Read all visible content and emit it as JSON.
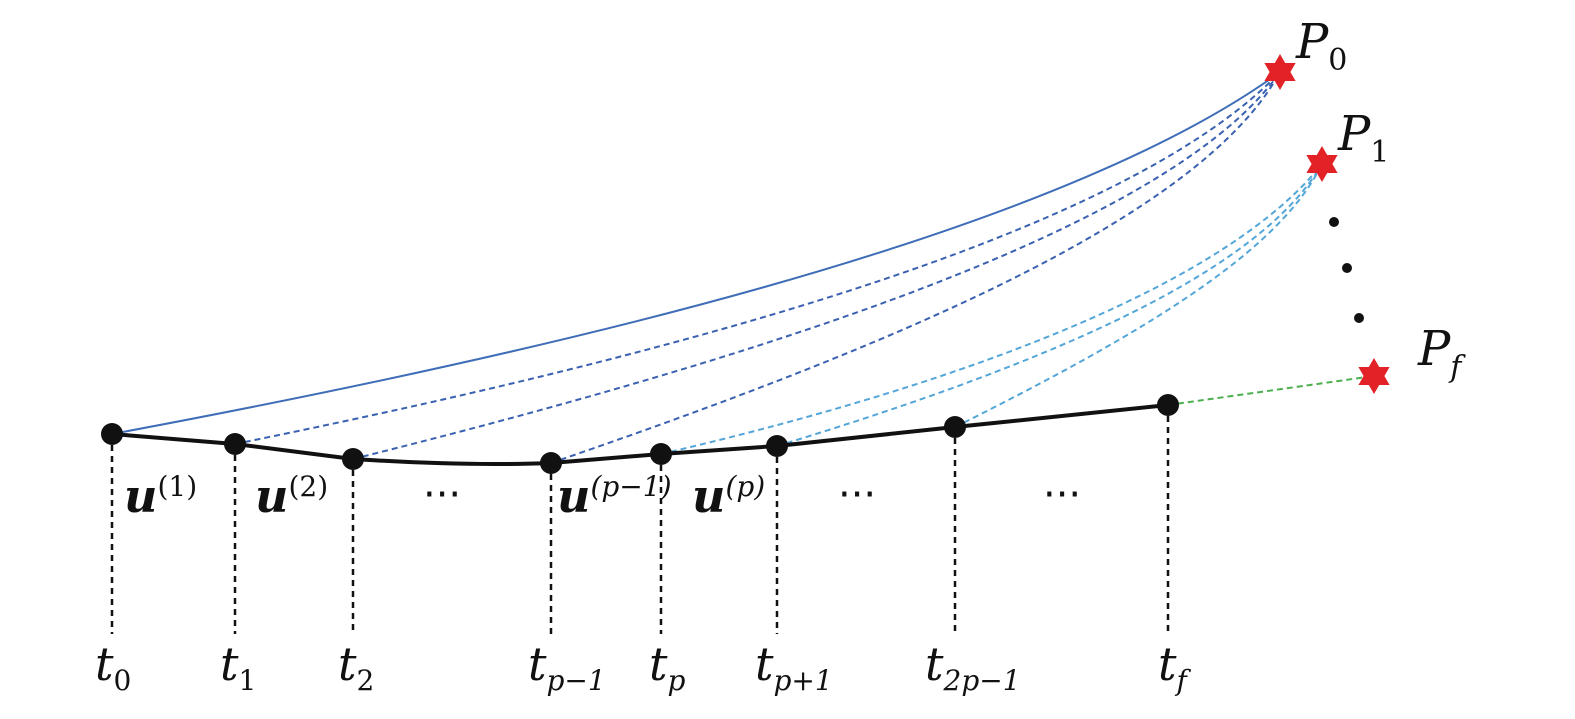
{
  "diagram": {
    "time_labels": [
      {
        "base": "t",
        "sub": "0"
      },
      {
        "base": "t",
        "sub": "1"
      },
      {
        "base": "t",
        "sub": "2"
      },
      {
        "base": "t",
        "sub": "p−1"
      },
      {
        "base": "t",
        "sub": "p"
      },
      {
        "base": "t",
        "sub": "p+1"
      },
      {
        "base": "t",
        "sub": "2p−1"
      },
      {
        "base": "t",
        "sub": "f"
      }
    ],
    "control_labels": [
      {
        "base": "u",
        "sup": "(1)"
      },
      {
        "base": "u",
        "sup": "(2)"
      },
      {
        "base": "u",
        "sup": "(p−1)"
      },
      {
        "base": "u",
        "sup": "(p)"
      }
    ],
    "targets": [
      {
        "base": "P",
        "sub": "0"
      },
      {
        "base": "P",
        "sub": "1"
      },
      {
        "base": "P",
        "sub": "f"
      }
    ],
    "ellipses": [
      "···",
      "···",
      "···"
    ],
    "colors": {
      "trajectory": "#111111",
      "node": "#111111",
      "star": "#e32227",
      "curve_p0": "#3f6db7",
      "dashed_p0": "#3a62b0",
      "dashed_p1": "#54a6d8",
      "dashed_pf": "#4caf50"
    }
  }
}
